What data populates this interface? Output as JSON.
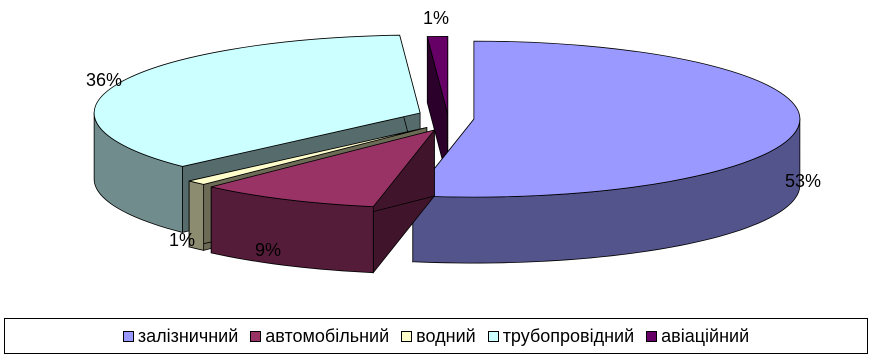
{
  "chart_data": {
    "type": "pie",
    "style": "3d-exploded",
    "legend_position": "bottom",
    "categories": [
      "залізничний",
      "автомобільний",
      "водний",
      "трубопровідний",
      "авіаційний"
    ],
    "values": [
      53,
      9,
      1,
      36,
      1
    ],
    "data_labels": [
      "53%",
      "9%",
      "1%",
      "36%",
      "1%"
    ],
    "colors": [
      "#9999FF",
      "#993366",
      "#FFFFCC",
      "#CCFFFF",
      "#660066"
    ]
  }
}
